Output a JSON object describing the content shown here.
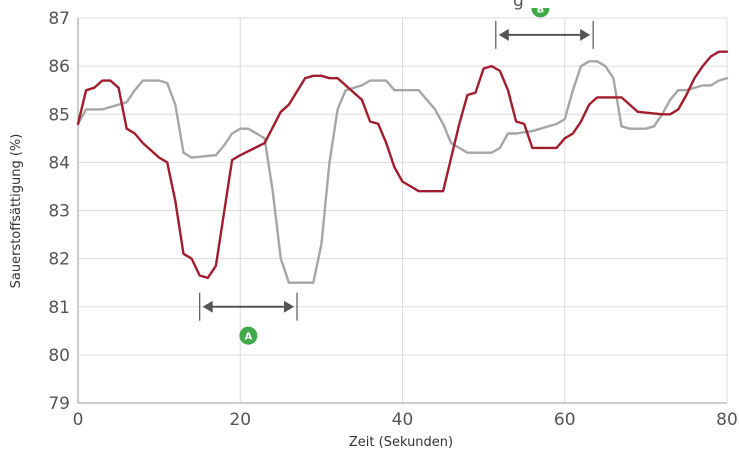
{
  "chart_data": {
    "type": "line",
    "title": "",
    "partial_top_text": "g",
    "xlabel": "Zeit (Sekunden)",
    "ylabel": "Sauerstoffsättigung (%)",
    "xlim": [
      0,
      80
    ],
    "ylim": [
      79,
      87
    ],
    "x_ticks": [
      0,
      20,
      40,
      60,
      80
    ],
    "y_ticks": [
      79,
      80,
      81,
      82,
      83,
      84,
      85,
      86,
      87
    ],
    "grid": true,
    "series": [
      {
        "color": "#a11d2e",
        "points": [
          [
            0,
            84.8
          ],
          [
            1,
            85.5
          ],
          [
            2,
            85.55
          ],
          [
            3,
            85.7
          ],
          [
            4,
            85.7
          ],
          [
            5,
            85.55
          ],
          [
            6,
            84.7
          ],
          [
            7,
            84.6
          ],
          [
            8,
            84.4
          ],
          [
            10,
            84.1
          ],
          [
            11,
            84.0
          ],
          [
            12,
            83.2
          ],
          [
            13,
            82.1
          ],
          [
            14,
            82.0
          ],
          [
            15,
            81.65
          ],
          [
            16,
            81.6
          ],
          [
            17,
            81.85
          ],
          [
            19,
            84.05
          ],
          [
            20,
            84.15
          ],
          [
            23,
            84.4
          ],
          [
            25,
            85.05
          ],
          [
            26,
            85.2
          ],
          [
            28,
            85.75
          ],
          [
            29,
            85.8
          ],
          [
            30,
            85.8
          ],
          [
            31,
            85.75
          ],
          [
            32,
            85.75
          ],
          [
            33,
            85.6
          ],
          [
            34,
            85.45
          ],
          [
            35,
            85.3
          ],
          [
            36,
            84.85
          ],
          [
            37,
            84.8
          ],
          [
            38,
            84.4
          ],
          [
            39,
            83.9
          ],
          [
            40,
            83.6
          ],
          [
            41,
            83.5
          ],
          [
            42,
            83.4
          ],
          [
            45,
            83.4
          ],
          [
            46,
            84.1
          ],
          [
            47,
            84.8
          ],
          [
            48,
            85.4
          ],
          [
            49,
            85.45
          ],
          [
            50,
            85.95
          ],
          [
            51,
            86.0
          ],
          [
            52,
            85.9
          ],
          [
            53,
            85.5
          ],
          [
            54,
            84.85
          ],
          [
            55,
            84.8
          ],
          [
            56,
            84.3
          ],
          [
            59,
            84.3
          ],
          [
            60,
            84.5
          ],
          [
            61,
            84.6
          ],
          [
            62,
            84.85
          ],
          [
            63,
            85.2
          ],
          [
            64,
            85.35
          ],
          [
            67,
            85.35
          ],
          [
            69,
            85.05
          ],
          [
            72,
            85.0
          ],
          [
            73,
            85.0
          ],
          [
            74,
            85.1
          ],
          [
            75,
            85.4
          ],
          [
            76,
            85.75
          ],
          [
            77,
            86.0
          ],
          [
            78,
            86.2
          ],
          [
            79,
            86.3
          ],
          [
            80,
            86.3
          ]
        ]
      },
      {
        "color": "#a6a6a6",
        "points": [
          [
            0,
            84.8
          ],
          [
            1,
            85.1
          ],
          [
            2,
            85.1
          ],
          [
            3,
            85.1
          ],
          [
            4,
            85.15
          ],
          [
            5,
            85.2
          ],
          [
            6,
            85.25
          ],
          [
            7,
            85.5
          ],
          [
            8,
            85.7
          ],
          [
            10,
            85.7
          ],
          [
            11,
            85.65
          ],
          [
            12,
            85.2
          ],
          [
            13,
            84.2
          ],
          [
            14,
            84.1
          ],
          [
            17,
            84.15
          ],
          [
            18,
            84.35
          ],
          [
            19,
            84.6
          ],
          [
            20,
            84.7
          ],
          [
            21,
            84.7
          ],
          [
            22,
            84.6
          ],
          [
            23,
            84.5
          ],
          [
            24,
            83.4
          ],
          [
            25,
            82.0
          ],
          [
            26,
            81.5
          ],
          [
            29,
            81.5
          ],
          [
            30,
            82.3
          ],
          [
            31,
            84.0
          ],
          [
            32,
            85.1
          ],
          [
            33,
            85.5
          ],
          [
            35,
            85.6
          ],
          [
            36,
            85.7
          ],
          [
            38,
            85.7
          ],
          [
            39,
            85.5
          ],
          [
            42,
            85.5
          ],
          [
            43,
            85.3
          ],
          [
            44,
            85.1
          ],
          [
            45,
            84.8
          ],
          [
            46,
            84.4
          ],
          [
            47,
            84.3
          ],
          [
            48,
            84.2
          ],
          [
            49,
            84.2
          ],
          [
            51,
            84.2
          ],
          [
            52,
            84.3
          ],
          [
            53,
            84.6
          ],
          [
            54,
            84.6
          ],
          [
            56,
            84.65
          ],
          [
            57,
            84.7
          ],
          [
            58,
            84.75
          ],
          [
            59,
            84.8
          ],
          [
            60,
            84.9
          ],
          [
            61,
            85.5
          ],
          [
            62,
            86.0
          ],
          [
            63,
            86.1
          ],
          [
            64,
            86.1
          ],
          [
            65,
            86.0
          ],
          [
            66,
            85.75
          ],
          [
            67,
            84.75
          ],
          [
            68,
            84.7
          ],
          [
            70,
            84.7
          ],
          [
            71,
            84.75
          ],
          [
            72,
            85.0
          ],
          [
            73,
            85.3
          ],
          [
            74,
            85.5
          ],
          [
            75,
            85.5
          ],
          [
            76,
            85.55
          ],
          [
            77,
            85.6
          ],
          [
            78,
            85.6
          ],
          [
            79,
            85.7
          ],
          [
            80,
            85.75
          ]
        ]
      }
    ],
    "annotations": [
      {
        "label": "A",
        "x_start": 15,
        "x_end": 27,
        "y": 81.0,
        "circle_x": 21,
        "circle_y": 80.4,
        "color": "#3faa49"
      },
      {
        "label": "B",
        "x_start": 51.5,
        "x_end": 63.5,
        "y": 86.65,
        "circle_x": 57,
        "circle_y": 87.2,
        "color": "#3faa49"
      }
    ]
  }
}
